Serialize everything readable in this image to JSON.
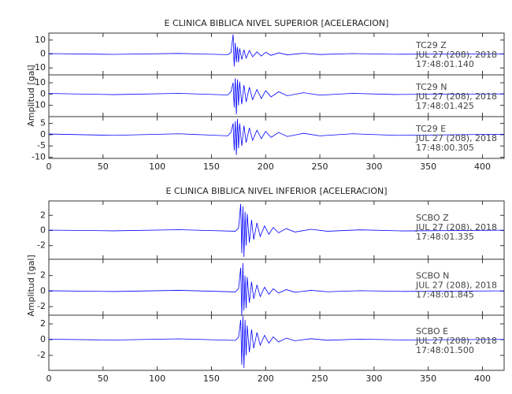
{
  "chart_data": [
    {
      "type": "line",
      "title": "E CLINICA BIBLICA NIVEL SUPERIOR [ACELERACION]",
      "ylabel": "Amplitud [gal]",
      "xlim": [
        0,
        420
      ],
      "xticks": [
        0,
        50,
        100,
        150,
        200,
        250,
        300,
        350,
        400
      ],
      "color": "#0000ff",
      "x": [
        0,
        60,
        120,
        165,
        168,
        170,
        171,
        172,
        173,
        174,
        175,
        176,
        178,
        180,
        182,
        185,
        188,
        192,
        196,
        200,
        205,
        212,
        220,
        235,
        250,
        280,
        320,
        420
      ],
      "panels": [
        {
          "station": "TC29   Z",
          "date": "JUL 27 (208), 2018",
          "time": "17:48:01.140",
          "ylim": [
            -15,
            15
          ],
          "yticks": [
            -10,
            0,
            10
          ],
          "values": [
            0.3,
            -0.3,
            0.4,
            -0.5,
            1,
            14,
            -9,
            8,
            -6,
            5,
            -6,
            4,
            -4,
            3,
            -3,
            2.5,
            -2,
            1.5,
            -1.5,
            1.2,
            -1,
            0.8,
            -0.6,
            0.5,
            -0.4,
            0.3,
            -0.2,
            0.1
          ]
        },
        {
          "station": "TC29   N",
          "date": "JUL 27 (208), 2018",
          "time": "17:48:01.425",
          "ylim": [
            -20,
            17
          ],
          "yticks": [
            -10,
            0,
            10
          ],
          "values": [
            0.5,
            -0.5,
            0.6,
            -0.8,
            2,
            10,
            -12,
            14,
            -18,
            13,
            -10,
            11,
            -9,
            8,
            -7,
            6,
            -5,
            4,
            -4,
            3,
            -2.5,
            2,
            -1.5,
            1.2,
            -1,
            0.6,
            -0.4,
            0.2
          ]
        },
        {
          "station": "TC29   E",
          "date": "JUL 27 (208), 2018",
          "time": "17:48:00.305",
          "ylim": [
            -10.5,
            8
          ],
          "yticks": [
            -10,
            -5,
            0,
            5
          ],
          "values": [
            0.3,
            -0.3,
            0.4,
            -0.5,
            1,
            5,
            -7,
            6,
            -9,
            7,
            -6,
            5,
            -5,
            4,
            -3.5,
            3,
            -2.5,
            2,
            -1.8,
            1.5,
            -1.2,
            1,
            -0.8,
            0.6,
            -0.5,
            0.4,
            -0.3,
            0.2
          ]
        }
      ]
    },
    {
      "type": "line",
      "title": "E CLINICA BIBLICA NIVEL INFERIOR [ACELERACION]",
      "ylabel": "Amplitud [gal]",
      "xlim": [
        0,
        420
      ],
      "xticks": [
        0,
        50,
        100,
        150,
        200,
        250,
        300,
        350,
        400
      ],
      "color": "#0000ff",
      "x": [
        0,
        60,
        120,
        172,
        175,
        177,
        178,
        179,
        180,
        181,
        182,
        183,
        185,
        187,
        189,
        192,
        195,
        199,
        203,
        207,
        212,
        219,
        227,
        242,
        257,
        287,
        327,
        420
      ],
      "panels": [
        {
          "station": "SCBO   Z",
          "date": "JUL 27 (208), 2018",
          "time": "17:48:01.335",
          "ylim": [
            -3.8,
            3.9
          ],
          "yticks": [
            -2,
            0,
            2
          ],
          "values": [
            0.05,
            -0.05,
            0.1,
            -0.1,
            0.3,
            3.5,
            -3,
            3.2,
            -3.5,
            2.5,
            -2,
            2.2,
            -1.6,
            1.4,
            -1.2,
            1,
            -0.8,
            0.6,
            -0.5,
            0.4,
            -0.3,
            0.25,
            -0.2,
            0.15,
            -0.1,
            0.08,
            -0.06,
            0.04
          ]
        },
        {
          "station": "SCBO   N",
          "date": "JUL 27 (208), 2018",
          "time": "17:48:01.845",
          "ylim": [
            -3.1,
            4.1
          ],
          "yticks": [
            -2,
            0,
            2
          ],
          "values": [
            0.05,
            -0.05,
            0.1,
            -0.1,
            0.3,
            3,
            -3.2,
            3.6,
            -2.5,
            2,
            -2.2,
            1.8,
            -1.5,
            1.2,
            -1,
            0.8,
            -0.7,
            0.5,
            -0.4,
            0.3,
            -0.25,
            0.2,
            -0.15,
            0.1,
            -0.08,
            0.06,
            -0.04,
            0.03
          ]
        },
        {
          "station": "SCBO   E",
          "date": "JUL 27 (208), 2018",
          "time": "17:48:01.500",
          "ylim": [
            -3.9,
            3.1
          ],
          "yticks": [
            -2,
            0,
            2
          ],
          "values": [
            0.05,
            -0.05,
            0.1,
            -0.1,
            0.3,
            2.5,
            -3.2,
            3,
            -3.6,
            2.5,
            -2,
            1.8,
            -1.6,
            1.3,
            -1.1,
            0.9,
            -0.7,
            0.55,
            -0.45,
            0.35,
            -0.3,
            0.2,
            -0.15,
            0.12,
            -0.08,
            0.06,
            -0.04,
            0.03
          ]
        }
      ]
    }
  ]
}
